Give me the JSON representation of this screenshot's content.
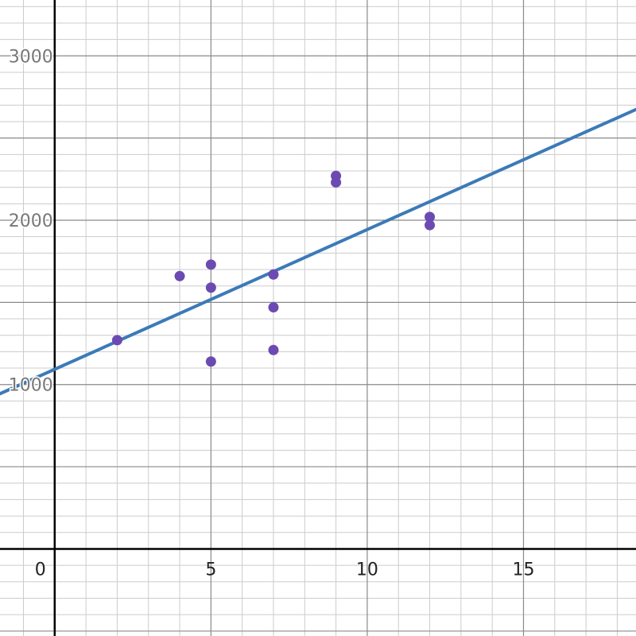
{
  "chart_data": {
    "type": "scatter",
    "title": "",
    "xlabel": "",
    "ylabel": "",
    "xlim": [
      -1.75,
      18.6
    ],
    "ylim": [
      -530,
      3340
    ],
    "grid": true,
    "minor_step_x": 1,
    "minor_step_y": 100,
    "major_step_x": 5,
    "major_step_y": 500,
    "x_ticks": [
      {
        "value": 0,
        "label": "0"
      },
      {
        "value": 5,
        "label": "5"
      },
      {
        "value": 10,
        "label": "10"
      },
      {
        "value": 15,
        "label": "15"
      }
    ],
    "y_ticks": [
      {
        "value": 1000,
        "label": "1000"
      },
      {
        "value": 2000,
        "label": "2000"
      },
      {
        "value": 3000,
        "label": "3000"
      }
    ],
    "points": [
      {
        "x": 2,
        "y": 1270
      },
      {
        "x": 4,
        "y": 1660
      },
      {
        "x": 5,
        "y": 1730
      },
      {
        "x": 5,
        "y": 1590
      },
      {
        "x": 5,
        "y": 1140
      },
      {
        "x": 7,
        "y": 1670
      },
      {
        "x": 7,
        "y": 1470
      },
      {
        "x": 7,
        "y": 1210
      },
      {
        "x": 9,
        "y": 2270
      },
      {
        "x": 9,
        "y": 2230
      },
      {
        "x": 12,
        "y": 2020
      },
      {
        "x": 12,
        "y": 1970
      }
    ],
    "trendline": {
      "intercept": 1093,
      "slope": 85
    },
    "colors": {
      "points": "#6b4bb1",
      "line": "#3c7ab8",
      "axis": "#000000",
      "grid_major": "#8a8a8a",
      "grid_minor": "#cccccc"
    }
  }
}
